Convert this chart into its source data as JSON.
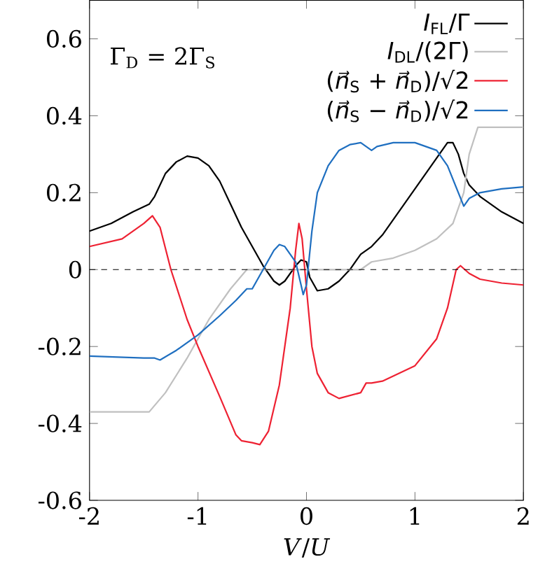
{
  "chart_data": {
    "type": "line",
    "xlabel": "*V*/*U*",
    "xlim": [
      -2,
      2
    ],
    "ylim": [
      -0.6,
      0.7
    ],
    "xticks": [
      -2,
      -1,
      0,
      1,
      2
    ],
    "yticks": [
      -0.6,
      -0.4,
      -0.2,
      0,
      0.2,
      0.4,
      0.6
    ],
    "legend": "top right",
    "grid": false,
    "annotations": [
      "Γ$_{D}$ = 2Γ$_{S}$"
    ],
    "ref_lines": [
      {
        "axis": "y",
        "value": 0,
        "line_style": "dashed",
        "color": "#000000"
      }
    ],
    "series": [
      {
        "name": "*I*$_{FL}$/Γ",
        "color": "#000000",
        "x": [
          -2,
          -1.8,
          -1.6,
          -1.45,
          -1.4,
          -1.3,
          -1.2,
          -1.1,
          -1.0,
          -0.9,
          -0.8,
          -0.7,
          -0.6,
          -0.5,
          -0.4,
          -0.3,
          -0.25,
          -0.2,
          -0.1,
          -0.05,
          0,
          0.03,
          0.1,
          0.2,
          0.3,
          0.4,
          0.5,
          0.6,
          0.7,
          0.8,
          0.9,
          1.0,
          1.1,
          1.2,
          1.3,
          1.35,
          1.4,
          1.45,
          1.5,
          1.6,
          1.8,
          2.0
        ],
        "values": [
          0.1,
          0.12,
          0.15,
          0.17,
          0.19,
          0.25,
          0.28,
          0.295,
          0.29,
          0.27,
          0.23,
          0.17,
          0.11,
          0.06,
          0.01,
          -0.03,
          -0.04,
          -0.03,
          0.01,
          0.025,
          0.02,
          -0.02,
          -0.055,
          -0.05,
          -0.03,
          0.0,
          0.04,
          0.06,
          0.09,
          0.13,
          0.17,
          0.21,
          0.25,
          0.29,
          0.33,
          0.33,
          0.3,
          0.25,
          0.22,
          0.19,
          0.15,
          0.12
        ]
      },
      {
        "name": "*I*$_{DL}$/(2Γ)",
        "color": "#c0c0c0",
        "x": [
          -2,
          -1.45,
          -1.3,
          -1.1,
          -0.9,
          -0.7,
          -0.55,
          0.5,
          0.6,
          0.8,
          1.0,
          1.2,
          1.35,
          1.45,
          1.5,
          1.58,
          2.0
        ],
        "values": [
          -0.37,
          -0.37,
          -0.32,
          -0.23,
          -0.13,
          -0.05,
          0.0,
          0.0,
          0.02,
          0.03,
          0.05,
          0.08,
          0.12,
          0.2,
          0.3,
          0.37,
          0.37
        ]
      },
      {
        "name": "(*n⃗*$_{S}$ + *n⃗*$_{D}$)/√2",
        "color": "#ee2233",
        "x": [
          -2,
          -1.7,
          -1.5,
          -1.42,
          -1.35,
          -1.25,
          -1.1,
          -1.0,
          -0.8,
          -0.65,
          -0.6,
          -0.5,
          -0.43,
          -0.35,
          -0.25,
          -0.15,
          -0.1,
          -0.07,
          -0.04,
          0,
          0.05,
          0.1,
          0.2,
          0.3,
          0.5,
          0.55,
          0.6,
          0.7,
          1.0,
          1.2,
          1.3,
          1.38,
          1.42,
          1.5,
          1.6,
          1.8,
          2.0
        ],
        "values": [
          0.06,
          0.08,
          0.12,
          0.14,
          0.11,
          0.0,
          -0.13,
          -0.2,
          -0.33,
          -0.43,
          -0.445,
          -0.45,
          -0.455,
          -0.42,
          -0.3,
          -0.1,
          0.05,
          0.12,
          0.08,
          -0.05,
          -0.2,
          -0.27,
          -0.32,
          -0.335,
          -0.32,
          -0.295,
          -0.295,
          -0.29,
          -0.25,
          -0.18,
          -0.1,
          0.0,
          0.01,
          -0.01,
          -0.025,
          -0.035,
          -0.04
        ]
      },
      {
        "name": "(*n⃗*$_{S}$ − *n⃗*$_{D}$)/√2",
        "color": "#1f6fc0",
        "x": [
          -2,
          -1.5,
          -1.4,
          -1.35,
          -1.2,
          -1.0,
          -0.8,
          -0.65,
          -0.55,
          -0.5,
          -0.4,
          -0.3,
          -0.25,
          -0.2,
          -0.1,
          -0.05,
          -0.03,
          0,
          0.05,
          0.1,
          0.2,
          0.3,
          0.4,
          0.5,
          0.55,
          0.6,
          0.65,
          0.8,
          1.0,
          1.2,
          1.3,
          1.4,
          1.45,
          1.5,
          1.6,
          1.8,
          2.0
        ],
        "values": [
          -0.225,
          -0.23,
          -0.23,
          -0.235,
          -0.21,
          -0.17,
          -0.12,
          -0.08,
          -0.05,
          -0.05,
          0.0,
          0.05,
          0.065,
          0.06,
          0.02,
          -0.04,
          -0.065,
          -0.04,
          0.1,
          0.2,
          0.27,
          0.31,
          0.325,
          0.33,
          0.32,
          0.31,
          0.32,
          0.33,
          0.33,
          0.31,
          0.27,
          0.2,
          0.165,
          0.185,
          0.2,
          0.21,
          0.215
        ]
      }
    ]
  }
}
